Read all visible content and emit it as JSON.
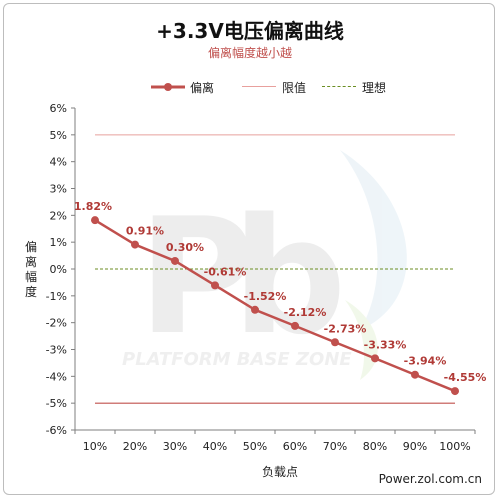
{
  "title": "+3.3V电压偏离曲线",
  "subtitle": "偏离幅度越小越",
  "legend": [
    {
      "label": "偏离",
      "style": "marker-line",
      "color": "#c0504d"
    },
    {
      "label": "限值",
      "style": "solid",
      "color": "#e8a09d"
    },
    {
      "label": "理想",
      "style": "dashed",
      "color": "#6b8e23"
    }
  ],
  "ylabel": "偏离幅度",
  "xlabel": "负载点",
  "credit": "Power.zol.com.cn",
  "watermark": "PLATFORM BASE ZONE",
  "chart_data": {
    "type": "line",
    "categories": [
      "10%",
      "20%",
      "30%",
      "40%",
      "50%",
      "60%",
      "70%",
      "80%",
      "90%",
      "100%"
    ],
    "series": [
      {
        "name": "偏离",
        "values": [
          1.82,
          0.91,
          0.3,
          -0.61,
          -1.52,
          -2.12,
          -2.73,
          -3.33,
          -3.94,
          -4.55
        ],
        "labels": [
          "1.82%",
          "0.91%",
          "0.30%",
          "-0.61%",
          "-1.52%",
          "-2.12%",
          "-2.73%",
          "-3.33%",
          "-3.94%",
          "-4.55%"
        ],
        "color": "#c0504d"
      }
    ],
    "limits": [
      5,
      -5
    ],
    "ideal": 0,
    "ylim": [
      -6,
      6
    ],
    "yticks": [
      "6%",
      "5%",
      "4%",
      "3%",
      "2%",
      "1%",
      "0%",
      "-1%",
      "-2%",
      "-3%",
      "-4%",
      "-5%",
      "-6%"
    ],
    "ytick_values": [
      6,
      5,
      4,
      3,
      2,
      1,
      0,
      -1,
      -2,
      -3,
      -4,
      -5,
      -6
    ],
    "grid": false,
    "legend_position": "top"
  }
}
